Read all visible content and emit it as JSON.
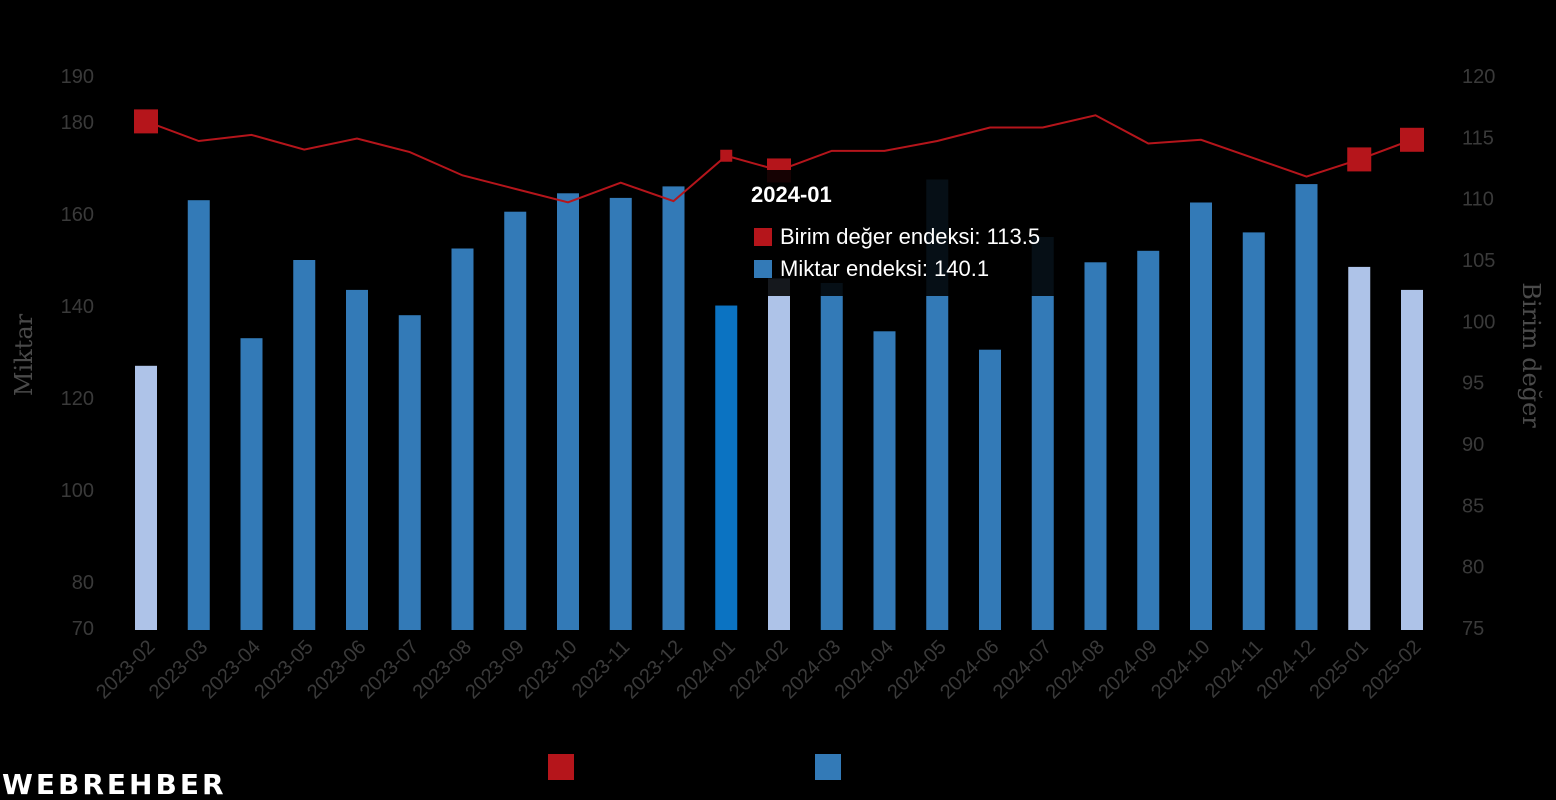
{
  "chart_data": {
    "type": "bar",
    "categories": [
      "2023-02",
      "2023-03",
      "2023-04",
      "2023-05",
      "2023-06",
      "2023-07",
      "2023-08",
      "2023-09",
      "2023-10",
      "2023-11",
      "2023-12",
      "2024-01",
      "2024-02",
      "2024-03",
      "2024-04",
      "2024-05",
      "2024-06",
      "2024-07",
      "2024-08",
      "2024-09",
      "2024-10",
      "2024-11",
      "2024-12",
      "2025-01",
      "2025-02"
    ],
    "series": [
      {
        "name": "Miktar endeksi",
        "type": "bar",
        "axis": "left",
        "color": "#337ab7",
        "values": [
          127,
          163,
          133,
          150,
          143.5,
          138,
          152.5,
          160.5,
          164.5,
          163.5,
          166,
          140.1,
          146,
          145,
          134.5,
          167.5,
          130.5,
          155,
          149.5,
          152,
          162.5,
          156,
          166.5,
          148.5,
          143.5
        ],
        "highlight_color": "#aec3e8",
        "highlighted": [
          0,
          12,
          23,
          24
        ],
        "active_color": "#0b73c2",
        "active_index": 11
      },
      {
        "name": "Birim değer endeksi",
        "type": "line",
        "axis": "right",
        "color": "#b5151b",
        "values": [
          116.3,
          114.7,
          115.2,
          114.0,
          114.9,
          113.8,
          111.9,
          110.8,
          109.7,
          111.3,
          109.8,
          113.5,
          112.3,
          113.9,
          113.9,
          114.7,
          115.8,
          115.8,
          116.8,
          114.5,
          114.8,
          113.3,
          111.8,
          113.2,
          114.8
        ],
        "marker_indices": [
          0,
          11,
          12,
          23,
          24
        ]
      }
    ],
    "xlabel": "",
    "ylabel": "Miktar",
    "ylabel_right": "Birim değer",
    "ylim": [
      70,
      190
    ],
    "ylim_right": [
      75,
      120
    ],
    "yticks": [
      70,
      80,
      100,
      120,
      140,
      160,
      180,
      190
    ],
    "yticks_right": [
      75,
      80,
      85,
      90,
      95,
      100,
      105,
      110,
      115,
      120
    ],
    "grid": false,
    "legend_position": "bottom-center"
  },
  "tooltip": {
    "title": "2024-01",
    "line_label": "Birim değer endeksi: 113.5",
    "bar_label": "Miktar endeksi: 140.1",
    "line_color": "#b5151b",
    "bar_color": "#337ab7"
  },
  "legend": {
    "line_label": "",
    "bar_label": "",
    "line_color": "#b5151b",
    "bar_color": "#337ab7"
  },
  "watermark": {
    "text": "WEBREHBER",
    "dot_color": "#d0202a"
  }
}
